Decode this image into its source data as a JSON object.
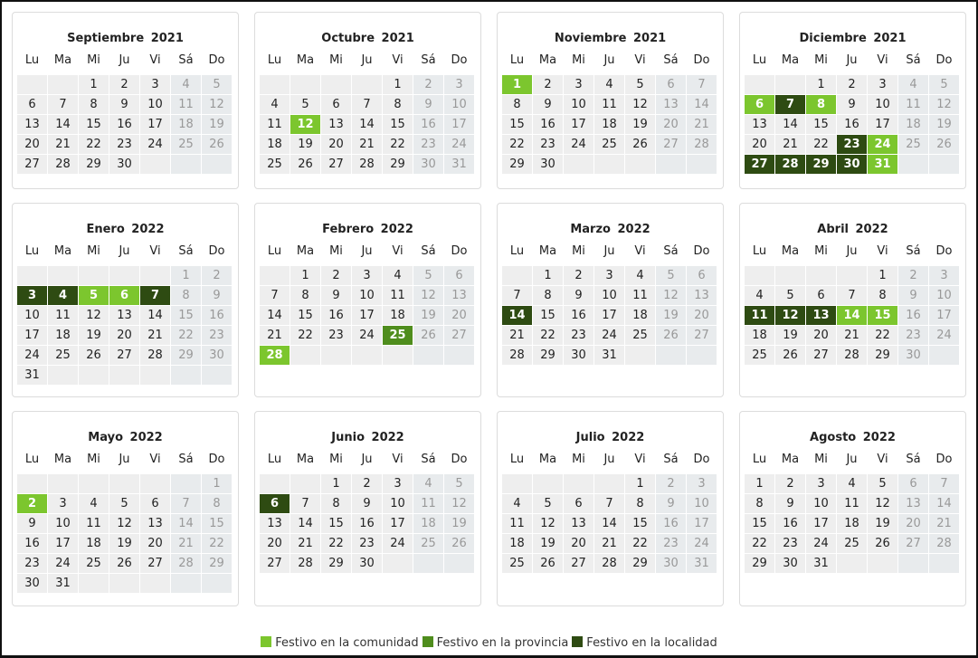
{
  "weekdays": [
    "Lu",
    "Ma",
    "Mi",
    "Ju",
    "Vi",
    "Sá",
    "Do"
  ],
  "colors": {
    "comunidad": "#7cc62e",
    "provincia": "#4f8d1d",
    "localidad": "#2e4b12"
  },
  "legend": [
    {
      "type": "comunidad",
      "label": "Festivo en la comunidad"
    },
    {
      "type": "provincia",
      "label": "Festivo en la provincia"
    },
    {
      "type": "localidad",
      "label": "Festivo en la localidad"
    }
  ],
  "months": [
    {
      "title": "Septiembre  2021",
      "start_weekday": 3,
      "days": 30,
      "holidays": {}
    },
    {
      "title": "Octubre  2021",
      "start_weekday": 5,
      "days": 31,
      "holidays": {
        "12": "comunidad"
      }
    },
    {
      "title": "Noviembre  2021",
      "start_weekday": 1,
      "days": 30,
      "holidays": {
        "1": "comunidad"
      }
    },
    {
      "title": "Diciembre  2021",
      "start_weekday": 3,
      "days": 31,
      "holidays": {
        "6": "comunidad",
        "7": "localidad",
        "8": "comunidad",
        "23": "localidad",
        "24": "comunidad",
        "27": "localidad",
        "28": "localidad",
        "29": "localidad",
        "30": "localidad",
        "31": "comunidad"
      }
    },
    {
      "title": "Enero  2022",
      "start_weekday": 6,
      "days": 31,
      "holidays": {
        "3": "localidad",
        "4": "localidad",
        "5": "comunidad",
        "6": "comunidad",
        "7": "localidad"
      }
    },
    {
      "title": "Febrero  2022",
      "start_weekday": 2,
      "days": 28,
      "holidays": {
        "25": "provincia",
        "28": "comunidad"
      }
    },
    {
      "title": "Marzo  2022",
      "start_weekday": 2,
      "days": 31,
      "holidays": {
        "14": "localidad"
      }
    },
    {
      "title": "Abril  2022",
      "start_weekday": 5,
      "days": 30,
      "holidays": {
        "11": "localidad",
        "12": "localidad",
        "13": "localidad",
        "14": "comunidad",
        "15": "comunidad"
      }
    },
    {
      "title": "Mayo  2022",
      "start_weekday": 7,
      "days": 31,
      "holidays": {
        "2": "comunidad"
      }
    },
    {
      "title": "Junio  2022",
      "start_weekday": 3,
      "days": 30,
      "holidays": {
        "6": "localidad"
      }
    },
    {
      "title": "Julio  2022",
      "start_weekday": 5,
      "days": 31,
      "holidays": {}
    },
    {
      "title": "Agosto  2022",
      "start_weekday": 1,
      "days": 31,
      "holidays": {}
    }
  ]
}
